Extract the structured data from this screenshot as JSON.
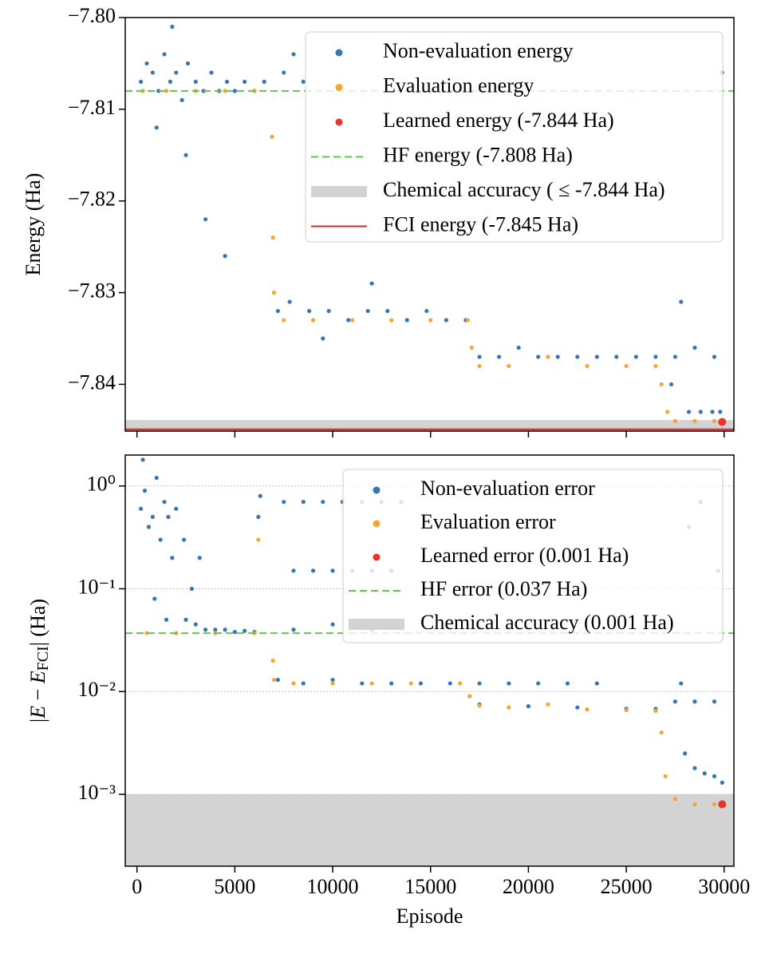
{
  "chart_data": [
    {
      "type": "scatter",
      "ylabel": "Energy (Ha)",
      "xlim": [
        -600,
        30500
      ],
      "xticks": [
        0,
        5000,
        10000,
        15000,
        20000,
        25000,
        30000
      ],
      "xtick_labels": false,
      "ylim": [
        -7.8451,
        -7.8
      ],
      "yticks": [
        {
          "value": -7.8,
          "label": "−7.80"
        },
        {
          "value": -7.81,
          "label": "−7.81"
        },
        {
          "value": -7.82,
          "label": "−7.82"
        },
        {
          "value": -7.83,
          "label": "−7.83"
        },
        {
          "value": -7.84,
          "label": "−7.84"
        }
      ],
      "grid": false,
      "log": false,
      "series": [
        {
          "name": "Non-evaluation energy",
          "color": "#3a75b0",
          "x": [
            200,
            500,
            800,
            1100,
            1400,
            1700,
            2000,
            2300,
            2600,
            3000,
            3400,
            3800,
            4200,
            4600,
            5000,
            5500,
            6000,
            6500,
            1000,
            2500,
            3500,
            4500,
            1800,
            7500,
            8000,
            8500,
            7200,
            7800,
            8800,
            9800,
            10800,
            11800,
            12800,
            13800,
            14800,
            15800,
            16800,
            9500,
            12000,
            17500,
            18500,
            19500,
            20500,
            21500,
            22500,
            23500,
            24500,
            25500,
            26500,
            27500,
            28500,
            29500,
            27800,
            28200,
            28800,
            29400,
            29800,
            27300,
            29900
          ],
          "values": [
            -7.807,
            -7.805,
            -7.806,
            -7.808,
            -7.804,
            -7.807,
            -7.806,
            -7.809,
            -7.805,
            -7.807,
            -7.808,
            -7.806,
            -7.808,
            -7.807,
            -7.808,
            -7.807,
            -7.808,
            -7.807,
            -7.812,
            -7.815,
            -7.822,
            -7.826,
            -7.801,
            -7.806,
            -7.804,
            -7.807,
            -7.832,
            -7.831,
            -7.832,
            -7.832,
            -7.833,
            -7.832,
            -7.832,
            -7.833,
            -7.832,
            -7.833,
            -7.833,
            -7.835,
            -7.829,
            -7.837,
            -7.837,
            -7.836,
            -7.837,
            -7.837,
            -7.837,
            -7.837,
            -7.837,
            -7.837,
            -7.837,
            -7.837,
            -7.836,
            -7.837,
            -7.831,
            -7.843,
            -7.843,
            -7.843,
            -7.843,
            -7.84,
            -7.806
          ]
        },
        {
          "name": "Evaluation energy",
          "color": "#f5a533",
          "x": [
            300,
            1500,
            3000,
            4500,
            6000,
            6900,
            6950,
            7000,
            7500,
            9000,
            11000,
            13000,
            15000,
            16900,
            17100,
            17500,
            19000,
            21000,
            23000,
            25000,
            26500,
            26800,
            27100,
            27500,
            28500,
            29500
          ],
          "values": [
            -7.808,
            -7.808,
            -7.808,
            -7.808,
            -7.808,
            -7.813,
            -7.824,
            -7.83,
            -7.833,
            -7.833,
            -7.833,
            -7.833,
            -7.833,
            -7.833,
            -7.836,
            -7.838,
            -7.838,
            -7.837,
            -7.838,
            -7.838,
            -7.838,
            -7.84,
            -7.843,
            -7.844,
            -7.844,
            -7.844
          ]
        },
        {
          "name": "Learned energy (-7.844 Ha)",
          "color": "#e8342a",
          "x": [
            29900
          ],
          "values": [
            -7.8441
          ]
        }
      ],
      "references": [
        {
          "kind": "line",
          "name": "HF energy (-7.808 Ha)",
          "color": "#5bc94a",
          "value": -7.808,
          "style": "dashed"
        },
        {
          "kind": "band",
          "name": "Chemical accuracy ( ≤ -7.844 Ha)",
          "color": "#d3d3d3",
          "value": -7.8439
        },
        {
          "kind": "line",
          "name": "FCI energy (-7.845 Ha)",
          "color": "#d62728",
          "value": -7.8449,
          "style": "solid"
        }
      ]
    },
    {
      "type": "scatter",
      "ylabel": [
        "|",
        "E",
        " − ",
        "E",
        "FCI",
        "| (Ha)"
      ],
      "xlabel": "Episode",
      "xlim": [
        -600,
        30500
      ],
      "xticks": [
        0,
        5000,
        10000,
        15000,
        20000,
        25000,
        30000
      ],
      "xtick_labels": true,
      "ylim": [
        0.0002,
        2.0
      ],
      "yticks": [
        {
          "value": 1,
          "label": "10⁰"
        },
        {
          "value": 0.1,
          "label": "10⁻¹"
        },
        {
          "value": 0.01,
          "label": "10⁻²"
        },
        {
          "value": 0.001,
          "label": "10⁻³"
        }
      ],
      "grid": true,
      "log": true,
      "series": [
        {
          "name": "Non-evaluation error",
          "color": "#3a75b0",
          "x": [
            200,
            400,
            600,
            800,
            1000,
            1200,
            1400,
            1600,
            1800,
            2000,
            2400,
            2800,
            300,
            900,
            1500,
            2500,
            3000,
            3500,
            4000,
            4500,
            5000,
            5500,
            6000,
            6200,
            6300,
            3200,
            7500,
            8500,
            9500,
            10500,
            11500,
            12500,
            13500,
            8000,
            9000,
            10000,
            11000,
            12000,
            13000,
            8000,
            10000,
            12000,
            7200,
            8500,
            10000,
            11500,
            13000,
            14500,
            16000,
            17500,
            19000,
            20500,
            22000,
            23500,
            17500,
            20000,
            22500,
            25000,
            26500,
            27500,
            28500,
            29500,
            27800,
            28000,
            28500,
            29000,
            29500,
            29900,
            28200,
            28800,
            29700
          ],
          "values": [
            0.6,
            0.9,
            0.4,
            0.5,
            1.2,
            0.3,
            0.7,
            0.5,
            0.2,
            0.6,
            0.3,
            0.1,
            1.8,
            0.08,
            0.05,
            0.05,
            0.045,
            0.04,
            0.04,
            0.04,
            0.038,
            0.039,
            0.038,
            0.5,
            0.8,
            0.2,
            0.7,
            0.7,
            0.7,
            0.7,
            0.7,
            0.7,
            0.7,
            0.15,
            0.15,
            0.15,
            0.15,
            0.15,
            0.15,
            0.04,
            0.045,
            0.04,
            0.013,
            0.012,
            0.013,
            0.012,
            0.012,
            0.012,
            0.012,
            0.012,
            0.012,
            0.012,
            0.012,
            0.012,
            0.0075,
            0.0072,
            0.007,
            0.0068,
            0.0068,
            0.008,
            0.008,
            0.008,
            0.012,
            0.0025,
            0.0018,
            0.0016,
            0.0015,
            0.0013,
            0.4,
            0.7,
            0.15
          ]
        },
        {
          "name": "Evaluation error",
          "color": "#f5a533",
          "x": [
            500,
            2000,
            4000,
            6000,
            6200,
            6950,
            7000,
            8000,
            10000,
            12000,
            14000,
            16500,
            17000,
            17500,
            19000,
            21000,
            23000,
            25000,
            26500,
            26800,
            27000,
            27500,
            28500,
            29500
          ],
          "values": [
            0.037,
            0.037,
            0.037,
            0.037,
            0.3,
            0.02,
            0.013,
            0.012,
            0.012,
            0.012,
            0.012,
            0.012,
            0.009,
            0.0073,
            0.007,
            0.0075,
            0.0067,
            0.0066,
            0.0065,
            0.004,
            0.0015,
            0.0009,
            0.0008,
            0.0008
          ]
        },
        {
          "name": "Learned error (0.001 Ha)",
          "color": "#e8342a",
          "x": [
            29900
          ],
          "values": [
            0.0008
          ]
        }
      ],
      "references": [
        {
          "kind": "line",
          "name": "HF error (0.037 Ha)",
          "color": "#5bc94a",
          "value": 0.037,
          "style": "dashed"
        },
        {
          "kind": "band",
          "name": "Chemical accuracy (0.001 Ha)",
          "color": "#d3d3d3",
          "value": 0.001
        }
      ]
    }
  ]
}
